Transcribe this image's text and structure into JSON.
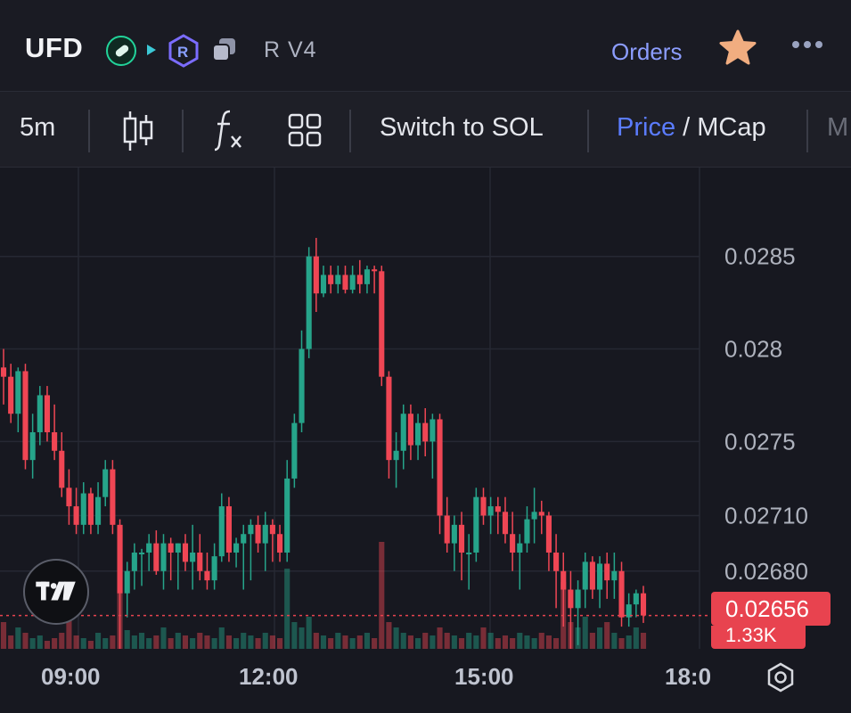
{
  "header": {
    "token": "UFD",
    "dex_label": "R V4",
    "orders_label": "Orders"
  },
  "toolbar": {
    "interval": "5m",
    "switch_label": "Switch to SOL",
    "price_label": "Price",
    "slash": " / ",
    "mcap_label": "MCap",
    "cut_label": "M"
  },
  "colors": {
    "up": "#26a48a",
    "down": "#ef4654",
    "accent": "#5b7cff",
    "price_line": "#e8434f"
  },
  "chart_data": {
    "type": "candlestick",
    "interval": "5m",
    "x_ticks": [
      "09:00",
      "12:00",
      "15:00",
      "18:0"
    ],
    "y_ticks": [
      "0.0285",
      "0.028",
      "0.0275",
      "0.02710",
      "0.02680"
    ],
    "y_range": [
      0.02638,
      0.02898
    ],
    "last_price": "0.02656",
    "last_volume": "1.33K",
    "candles": [
      [
        0.0279,
        0.028,
        0.0277,
        0.02785
      ],
      [
        0.02785,
        0.02792,
        0.0276,
        0.02765
      ],
      [
        0.02765,
        0.0279,
        0.02755,
        0.02788
      ],
      [
        0.02788,
        0.02792,
        0.02735,
        0.0274
      ],
      [
        0.0274,
        0.02765,
        0.0273,
        0.02755
      ],
      [
        0.02755,
        0.0278,
        0.02748,
        0.02775
      ],
      [
        0.02775,
        0.0278,
        0.0275,
        0.02755
      ],
      [
        0.02755,
        0.0277,
        0.0274,
        0.02745
      ],
      [
        0.02745,
        0.02755,
        0.0272,
        0.02725
      ],
      [
        0.02725,
        0.02735,
        0.02705,
        0.02715
      ],
      [
        0.02715,
        0.02725,
        0.027,
        0.02705
      ],
      [
        0.02705,
        0.02728,
        0.027,
        0.02722
      ],
      [
        0.02722,
        0.02725,
        0.027,
        0.02705
      ],
      [
        0.02705,
        0.02728,
        0.027,
        0.0272
      ],
      [
        0.0272,
        0.0274,
        0.02715,
        0.02735
      ],
      [
        0.02735,
        0.0274,
        0.027,
        0.02705
      ],
      [
        0.02705,
        0.02708,
        0.02602,
        0.02668
      ],
      [
        0.02668,
        0.02685,
        0.02655,
        0.0268
      ],
      [
        0.0268,
        0.02695,
        0.0267,
        0.0269
      ],
      [
        0.0269,
        0.02692,
        0.02672,
        0.0269
      ],
      [
        0.0269,
        0.027,
        0.0268,
        0.02695
      ],
      [
        0.02695,
        0.02702,
        0.02678,
        0.0268
      ],
      [
        0.0268,
        0.027,
        0.0267,
        0.02695
      ],
      [
        0.02695,
        0.02698,
        0.02675,
        0.0269
      ],
      [
        0.0269,
        0.02695,
        0.0267,
        0.02695
      ],
      [
        0.02695,
        0.027,
        0.0268,
        0.02685
      ],
      [
        0.02685,
        0.02705,
        0.0267,
        0.0269
      ],
      [
        0.0269,
        0.027,
        0.02675,
        0.0268
      ],
      [
        0.0268,
        0.0269,
        0.0267,
        0.02675
      ],
      [
        0.02675,
        0.02695,
        0.0267,
        0.02688
      ],
      [
        0.02688,
        0.02722,
        0.02685,
        0.02715
      ],
      [
        0.02715,
        0.0272,
        0.02685,
        0.0269
      ],
      [
        0.0269,
        0.02698,
        0.02682,
        0.02695
      ],
      [
        0.02695,
        0.02705,
        0.0267,
        0.027
      ],
      [
        0.027,
        0.02708,
        0.02675,
        0.02705
      ],
      [
        0.02705,
        0.0271,
        0.0269,
        0.02695
      ],
      [
        0.02695,
        0.02712,
        0.0268,
        0.02705
      ],
      [
        0.02705,
        0.02708,
        0.02685,
        0.027
      ],
      [
        0.027,
        0.02705,
        0.02685,
        0.0269
      ],
      [
        0.0269,
        0.0274,
        0.02685,
        0.0273
      ],
      [
        0.0273,
        0.02765,
        0.02725,
        0.0276
      ],
      [
        0.0276,
        0.0281,
        0.02755,
        0.028
      ],
      [
        0.028,
        0.02855,
        0.02795,
        0.0285
      ],
      [
        0.0285,
        0.0286,
        0.0282,
        0.0283
      ],
      [
        0.0283,
        0.02845,
        0.02828,
        0.0284
      ],
      [
        0.0284,
        0.02845,
        0.0283,
        0.02835
      ],
      [
        0.02835,
        0.02845,
        0.0283,
        0.0284
      ],
      [
        0.0284,
        0.02845,
        0.0283,
        0.02832
      ],
      [
        0.02832,
        0.02845,
        0.0283,
        0.0284
      ],
      [
        0.0284,
        0.02848,
        0.0283,
        0.02835
      ],
      [
        0.02835,
        0.02845,
        0.0283,
        0.02843
      ],
      [
        0.02843,
        0.02845,
        0.0283,
        0.02842
      ],
      [
        0.02842,
        0.02845,
        0.0278,
        0.02785
      ],
      [
        0.02785,
        0.02788,
        0.0273,
        0.0274
      ],
      [
        0.0274,
        0.02755,
        0.02725,
        0.02745
      ],
      [
        0.02745,
        0.0277,
        0.02735,
        0.02765
      ],
      [
        0.02765,
        0.0277,
        0.0274,
        0.02748
      ],
      [
        0.02748,
        0.02765,
        0.0274,
        0.0276
      ],
      [
        0.0276,
        0.02768,
        0.02742,
        0.0275
      ],
      [
        0.0275,
        0.02765,
        0.0273,
        0.02762
      ],
      [
        0.02762,
        0.02765,
        0.027,
        0.0271
      ],
      [
        0.0271,
        0.0272,
        0.0269,
        0.02695
      ],
      [
        0.02695,
        0.0271,
        0.0268,
        0.02705
      ],
      [
        0.02705,
        0.02712,
        0.02675,
        0.0269
      ],
      [
        0.0269,
        0.027,
        0.0267,
        0.0269
      ],
      [
        0.0269,
        0.02725,
        0.02685,
        0.0272
      ],
      [
        0.0272,
        0.02725,
        0.02705,
        0.0271
      ],
      [
        0.0271,
        0.0272,
        0.027,
        0.02715
      ],
      [
        0.02715,
        0.0272,
        0.027,
        0.02712
      ],
      [
        0.02712,
        0.0272,
        0.02695,
        0.027
      ],
      [
        0.027,
        0.02712,
        0.0268,
        0.0269
      ],
      [
        0.0269,
        0.027,
        0.0267,
        0.02695
      ],
      [
        0.02695,
        0.02715,
        0.0269,
        0.02708
      ],
      [
        0.02708,
        0.02725,
        0.02695,
        0.02712
      ],
      [
        0.02712,
        0.02718,
        0.027,
        0.0271
      ],
      [
        0.0271,
        0.02712,
        0.0268,
        0.0269
      ],
      [
        0.0269,
        0.027,
        0.0266,
        0.0268
      ],
      [
        0.0268,
        0.0269,
        0.0265,
        0.0267
      ],
      [
        0.0267,
        0.0268,
        0.02635,
        0.0266
      ],
      [
        0.0266,
        0.02675,
        0.0264,
        0.0267
      ],
      [
        0.0267,
        0.0269,
        0.0266,
        0.02685
      ],
      [
        0.02685,
        0.02688,
        0.02665,
        0.0267
      ],
      [
        0.0267,
        0.02688,
        0.0266,
        0.02684
      ],
      [
        0.02684,
        0.0269,
        0.02665,
        0.02675
      ],
      [
        0.02675,
        0.0269,
        0.02665,
        0.0268
      ],
      [
        0.0268,
        0.02685,
        0.0265,
        0.02655
      ],
      [
        0.02655,
        0.02668,
        0.0265,
        0.02662
      ],
      [
        0.02662,
        0.0267,
        0.02655,
        0.02668
      ],
      [
        0.02668,
        0.02672,
        0.02652,
        0.02656
      ]
    ],
    "volumes": [
      10,
      5,
      8,
      6,
      4,
      5,
      3,
      4,
      6,
      12,
      5,
      4,
      3,
      6,
      4,
      5,
      45,
      7,
      5,
      6,
      4,
      5,
      8,
      4,
      6,
      5,
      4,
      6,
      5,
      4,
      8,
      5,
      4,
      6,
      5,
      4,
      6,
      5,
      4,
      30,
      10,
      8,
      12,
      6,
      5,
      4,
      6,
      5,
      4,
      5,
      6,
      4,
      40,
      10,
      8,
      6,
      5,
      4,
      6,
      5,
      8,
      6,
      5,
      4,
      6,
      5,
      8,
      6,
      4,
      5,
      4,
      6,
      5,
      4,
      6,
      5,
      4,
      25,
      10,
      8,
      12,
      6,
      8,
      10,
      6,
      4,
      5,
      8,
      6
    ]
  }
}
